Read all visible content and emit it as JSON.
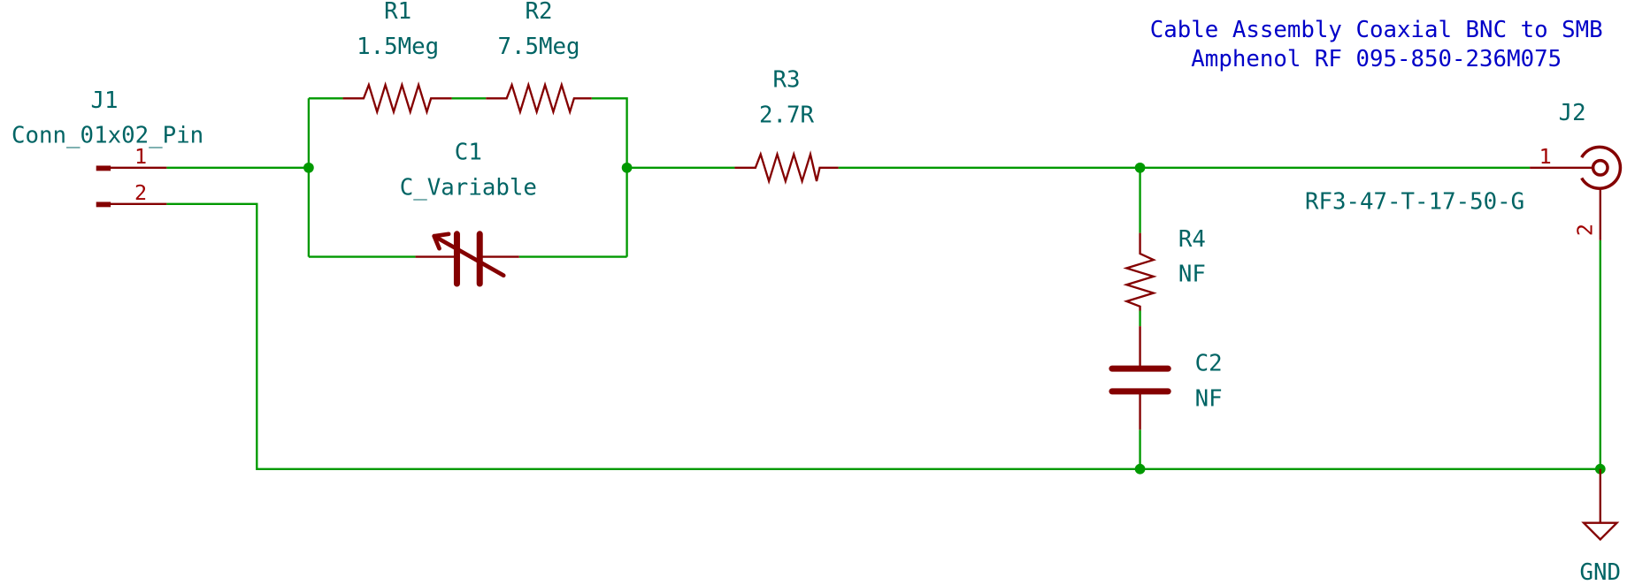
{
  "notes": [
    "Cable Assembly Coaxial BNC to SMB",
    "Amphenol RF 095-850-236M075"
  ],
  "components": {
    "J1": {
      "ref": "J1",
      "value": "Conn_01x02_Pin",
      "pins": [
        "1",
        "2"
      ]
    },
    "R1": {
      "ref": "R1",
      "value": "1.5Meg"
    },
    "R2": {
      "ref": "R2",
      "value": "7.5Meg"
    },
    "C1": {
      "ref": "C1",
      "value": "C_Variable"
    },
    "R3": {
      "ref": "R3",
      "value": "2.7R"
    },
    "R4": {
      "ref": "R4",
      "value": "NF"
    },
    "C2": {
      "ref": "C2",
      "value": "NF"
    },
    "J2": {
      "ref": "J2",
      "value": "RF3-47-T-17-50-G",
      "pins": [
        "1",
        "2"
      ]
    },
    "GND": {
      "value": "GND"
    }
  },
  "colors": {
    "wire": "#009900",
    "symbol": "#840000",
    "text": "#006464",
    "note": "#0000c8"
  }
}
